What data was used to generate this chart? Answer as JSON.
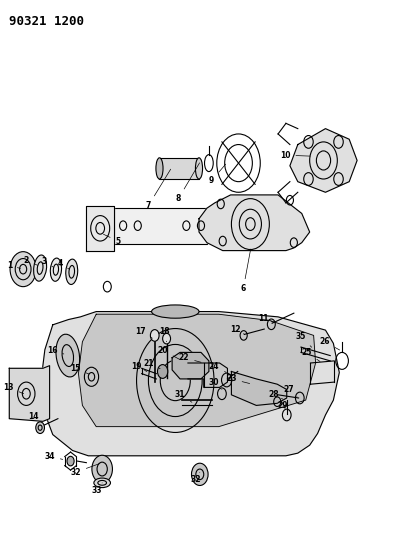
{
  "title": "90321 1200",
  "bg_color": "#ffffff",
  "line_color": "#000000",
  "figsize": [
    3.98,
    5.33
  ],
  "dpi": 100
}
